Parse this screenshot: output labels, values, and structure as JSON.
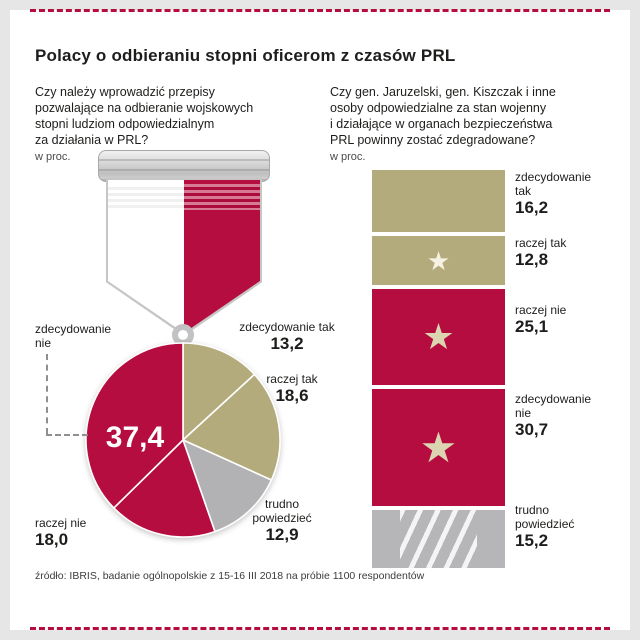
{
  "page": {
    "title": "Polacy o odbieraniu stopni oficerom z czasów PRL",
    "source": "źródło: IBRIS, badanie ogólnopolskie z 15-16 III 2018 na próbie 1100 respondentów",
    "palette": {
      "accent_crimson": "#b60d40",
      "olive": "#b3ab7c",
      "neutral_gray": "#b2b2b4"
    }
  },
  "left": {
    "question": "Czy należy wprowadzić przepisy\npozwalające na odbieranie wojskowych\nstopni ludziom odpowiedzialnym\nza działania w PRL?",
    "unit": "w proc."
  },
  "right": {
    "question": "Czy gen. Jaruzelski, gen. Kiszczak i inne\nosoby odpowiedzialne za stan wojenny\ni działające w organach bezpieczeństwa\nPRL powinny zostać zdegradowane?",
    "unit": "w proc."
  },
  "chart_data": [
    {
      "type": "pie",
      "unit": "proc.",
      "title": "Czy należy wprowadzić przepisy pozwalające na odbieranie wojskowych stopni ludziom odpowiedzialnym za działania w PRL?",
      "labels": [
        "zdecydowanie tak",
        "raczej tak",
        "trudno powiedzieć",
        "raczej nie",
        "zdecydowanie nie"
      ],
      "values": [
        13.2,
        18.6,
        12.9,
        18.0,
        37.4
      ],
      "display": [
        "13,2",
        "18,6",
        "12,9",
        "18,0",
        "37,4"
      ],
      "colors": [
        "#b3ab7c",
        "#b3ab7c",
        "#b2b2b4",
        "#b60d40",
        "#b60d40"
      ],
      "start_angle_deg": 0,
      "legend_position": "around"
    },
    {
      "type": "bar",
      "unit": "proc.",
      "orientation": "vertical-stack",
      "title": "Czy gen. Jaruzelski, gen. Kiszczak i inne osoby odpowiedzialne za stan wojenny i działające w organach bezpieczeństwa PRL powinny zostać zdegradowane?",
      "segments": [
        {
          "label": "zdecydowanie tak",
          "value": 16.2,
          "display": "16,2",
          "color": "#b3ab7c",
          "star": false
        },
        {
          "label": "raczej tak",
          "value": 12.8,
          "display": "12,8",
          "color": "#b3ab7c",
          "star": true,
          "star_color": "#f5f1e3"
        },
        {
          "label": "raczej nie",
          "value": 25.1,
          "display": "25,1",
          "color": "#b60d40",
          "star": true,
          "star_color": "#dcd5b2"
        },
        {
          "label": "zdecydowanie nie",
          "value": 30.7,
          "display": "30,7",
          "color": "#b60d40",
          "star": true,
          "star_color": "#dcd5b2"
        },
        {
          "label": "trudno powiedzieć",
          "value": 15.2,
          "display": "15,2",
          "color": "#b6b6b8",
          "star": false,
          "pattern": "stripes"
        }
      ]
    }
  ]
}
